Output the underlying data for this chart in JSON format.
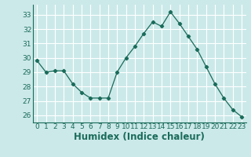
{
  "x": [
    0,
    1,
    2,
    3,
    4,
    5,
    6,
    7,
    8,
    9,
    10,
    11,
    12,
    13,
    14,
    15,
    16,
    17,
    18,
    19,
    20,
    21,
    22,
    23
  ],
  "y": [
    29.8,
    29.0,
    29.1,
    29.1,
    28.2,
    27.6,
    27.2,
    27.2,
    27.2,
    29.0,
    30.0,
    30.8,
    31.7,
    32.5,
    32.2,
    33.2,
    32.4,
    31.5,
    30.6,
    29.4,
    28.2,
    27.2,
    26.4,
    25.9
  ],
  "xlabel": "Humidex (Indice chaleur)",
  "ylim": [
    25.5,
    33.7
  ],
  "xlim": [
    -0.5,
    23.5
  ],
  "yticks": [
    26,
    27,
    28,
    29,
    30,
    31,
    32,
    33
  ],
  "xticks": [
    0,
    1,
    2,
    3,
    4,
    5,
    6,
    7,
    8,
    9,
    10,
    11,
    12,
    13,
    14,
    15,
    16,
    17,
    18,
    19,
    20,
    21,
    22,
    23
  ],
  "line_color": "#1a6b5a",
  "marker": "D",
  "marker_size": 2.2,
  "bg_color": "#cce9e9",
  "grid_color": "#ffffff",
  "tick_fontsize": 6.5,
  "xlabel_fontsize": 8.5
}
